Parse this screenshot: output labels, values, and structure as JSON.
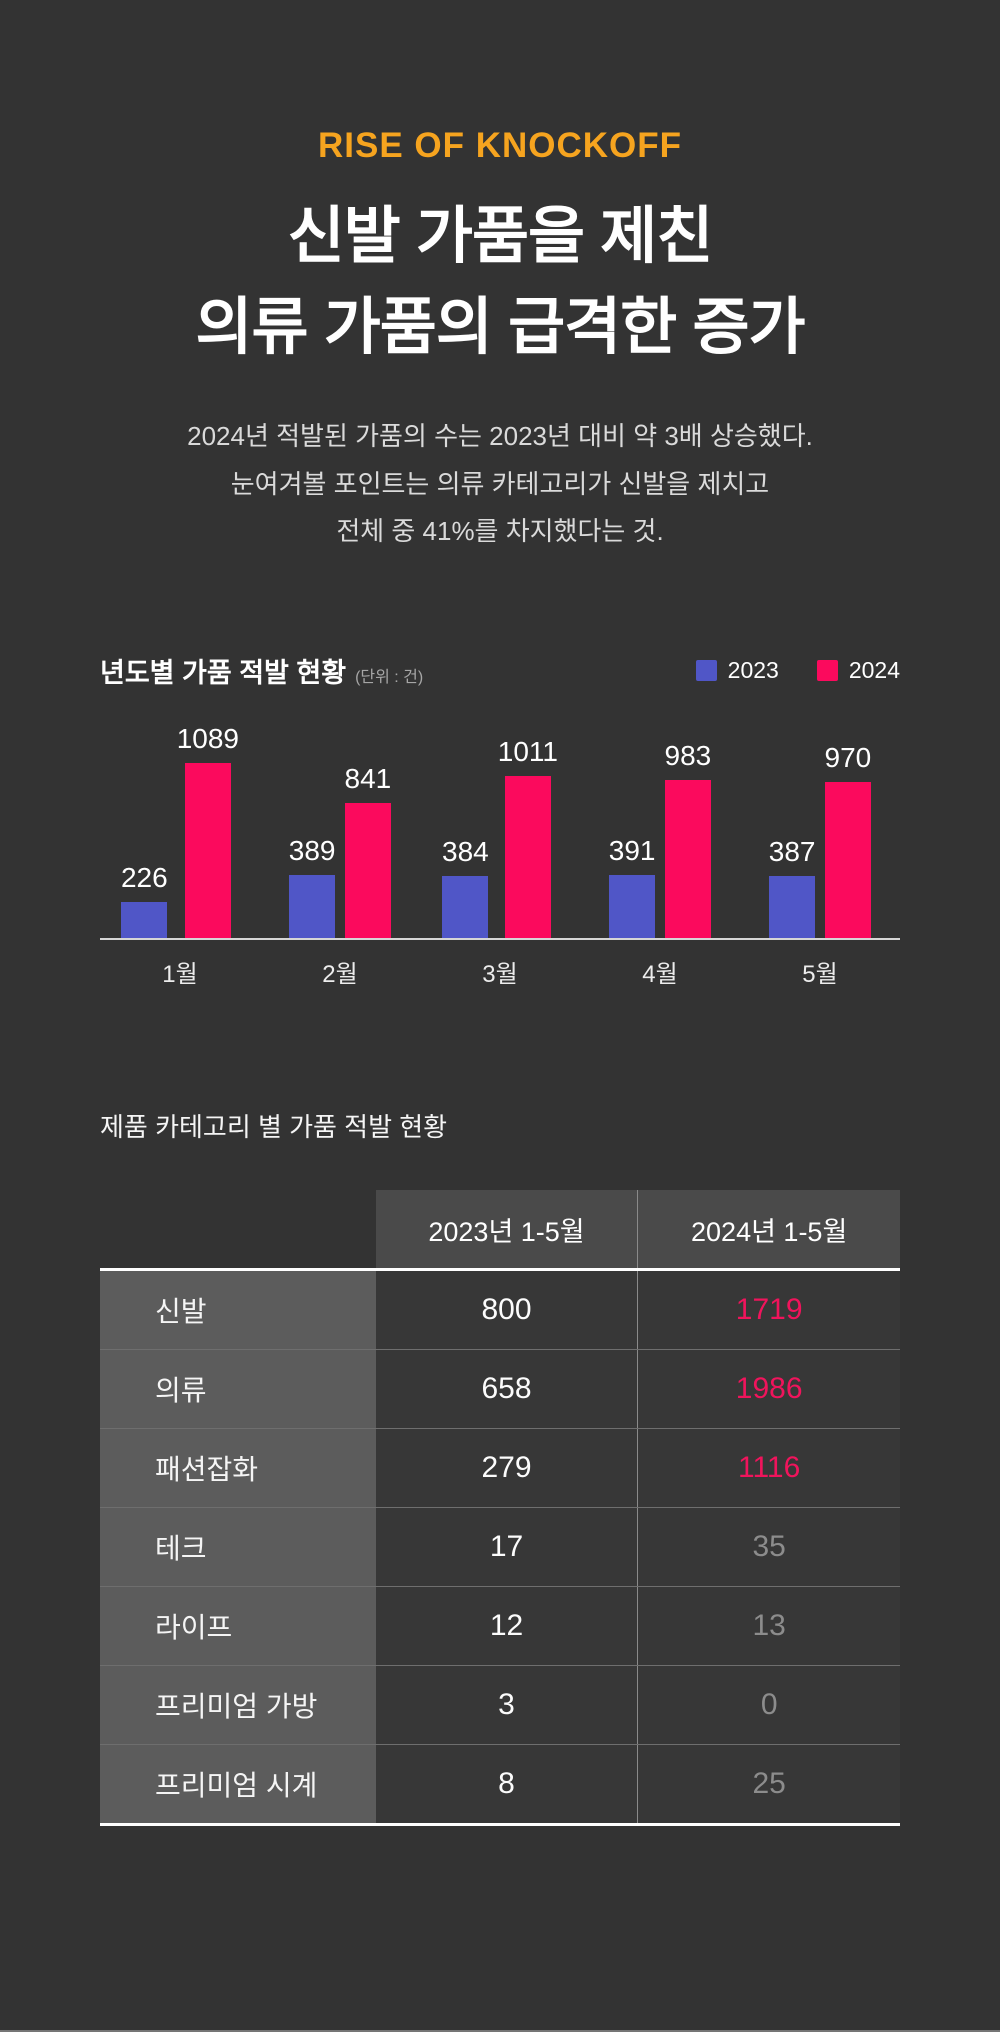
{
  "page": {
    "background": "#333333",
    "accent_orange": "#F6A41F",
    "accent_blue": "#5056C7",
    "accent_pink": "#FB0A5D"
  },
  "hero": {
    "eyebrow": "RISE OF KNOCKOFF",
    "title_line1": "신발 가품을 제친",
    "title_line2": "의류 가품의 급격한 증가",
    "description_lines": [
      "2024년 적발된 가품의 수는 2023년 대비 약 3배 상승했다.",
      "눈여겨볼 포인트는 의류 카테고리가 신발을 제치고",
      "전체 중 41%를 차지했다는 것."
    ]
  },
  "chart_section": {
    "title": "년도별 가품 적발 현황",
    "unit_note": "(단위 : 건)",
    "legend": [
      {
        "label": "2023",
        "color": "#5056C7"
      },
      {
        "label": "2024",
        "color": "#FB0A5D"
      }
    ]
  },
  "chart_data": {
    "type": "bar",
    "title": "년도별 가품 적발 현황",
    "unit": "건",
    "categories": [
      "1월",
      "2월",
      "3월",
      "4월",
      "5월"
    ],
    "series": [
      {
        "name": "2023",
        "color": "#5056C7",
        "values": [
          226,
          389,
          384,
          391,
          387
        ]
      },
      {
        "name": "2024",
        "color": "#FB0A5D",
        "values": [
          1089,
          841,
          1011,
          983,
          970
        ]
      }
    ],
    "ylim": [
      0,
      1089
    ],
    "grid": false,
    "legend_position": "top-right",
    "value_labels": true
  },
  "table_section": {
    "title": "제품 카테고리 별 가품 적발 현황",
    "columns": [
      "",
      "2023년 1-5월",
      "2024년 1-5월"
    ],
    "rows": [
      {
        "category": "신발",
        "y2023": "800",
        "y2024": "1719",
        "highlight_2024": true
      },
      {
        "category": "의류",
        "y2023": "658",
        "y2024": "1986",
        "highlight_2024": true
      },
      {
        "category": "패션잡화",
        "y2023": "279",
        "y2024": "1116",
        "highlight_2024": true
      },
      {
        "category": "테크",
        "y2023": "17",
        "y2024": "35",
        "highlight_2024": false
      },
      {
        "category": "라이프",
        "y2023": "12",
        "y2024": "13",
        "highlight_2024": false
      },
      {
        "category": "프리미엄 가방",
        "y2023": "3",
        "y2024": "0",
        "highlight_2024": false
      },
      {
        "category": "프리미엄 시계",
        "y2023": "8",
        "y2024": "25",
        "highlight_2024": false
      }
    ],
    "value_colors": {
      "highlight": "#F0145C",
      "muted": "#8C8C8C"
    }
  }
}
